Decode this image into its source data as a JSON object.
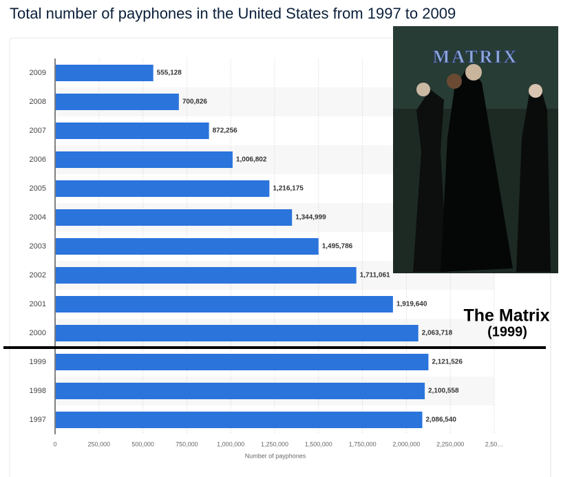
{
  "chart_data": {
    "type": "bar",
    "orientation": "horizontal",
    "title": "Total number of payphones in the United States from 1997 to 2009",
    "x_label": "Number of payphones",
    "categories": [
      "2009",
      "2008",
      "2007",
      "2006",
      "2005",
      "2004",
      "2003",
      "2002",
      "2001",
      "2000",
      "1999",
      "1998",
      "1997"
    ],
    "values": [
      555128,
      700826,
      872256,
      1006802,
      1216175,
      1344999,
      1495786,
      1711061,
      1919640,
      2063718,
      2121526,
      2100558,
      2086540
    ],
    "value_labels": [
      "555,128",
      "700,826",
      "872,256",
      "1,006,802",
      "1,216,175",
      "1,344,999",
      "1,495,786",
      "1,711,061",
      "1,919,640",
      "2,063,718",
      "2,121,526",
      "2,100,558",
      "2,086,540"
    ],
    "color": "#2a74dc",
    "xlim": [
      0,
      2500000
    ],
    "xticks": [
      0,
      {
        "value": 250000,
        "label": "250,000"
      },
      {
        "value": 500000,
        "label": "500,000"
      },
      {
        "value": 750000,
        "label": "750,000"
      },
      {
        "value": 1000000,
        "label": "1,000,000"
      },
      {
        "value": 1250000,
        "label": "1,250,000"
      },
      {
        "value": 1500000,
        "label": "1,500,000"
      },
      {
        "value": 1750000,
        "label": "1,750,000"
      },
      {
        "value": 2000000,
        "label": "2,000,000"
      },
      {
        "value": 2250000,
        "label": "2,250,000"
      },
      {
        "value": 2500000,
        "label": "2,50…"
      }
    ],
    "grid": true,
    "annotation": {
      "title": "The Matrix",
      "year": "(1999)"
    },
    "poster_title": "MATRIX"
  }
}
